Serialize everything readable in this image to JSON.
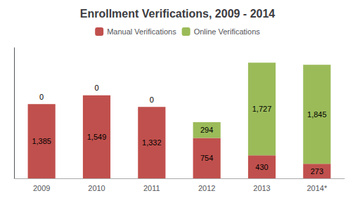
{
  "chart_data": {
    "type": "bar",
    "title": "Enrollment Verifications, 2009 - 2014",
    "categories": [
      "2009",
      "2010",
      "2011",
      "2012",
      "2013",
      "2014*"
    ],
    "series": [
      {
        "name": "Manual Verifications",
        "color": "#c0504d",
        "values": [
          1385,
          1549,
          1332,
          754,
          430,
          273
        ],
        "value_labels": [
          "1,385",
          "1,549",
          "1,332",
          "754",
          "430",
          "273"
        ]
      },
      {
        "name": "Online Verifications",
        "color": "#9bbb59",
        "values": [
          0,
          0,
          0,
          294,
          1727,
          1845
        ],
        "value_labels": [
          "0",
          "0",
          "0",
          "294",
          "1,727",
          "1,845"
        ]
      }
    ],
    "stacked": true,
    "data_labels": true,
    "ylim": [
      0,
      2435.7
    ],
    "grid": false,
    "legend": "top",
    "tick_labels": "x"
  }
}
